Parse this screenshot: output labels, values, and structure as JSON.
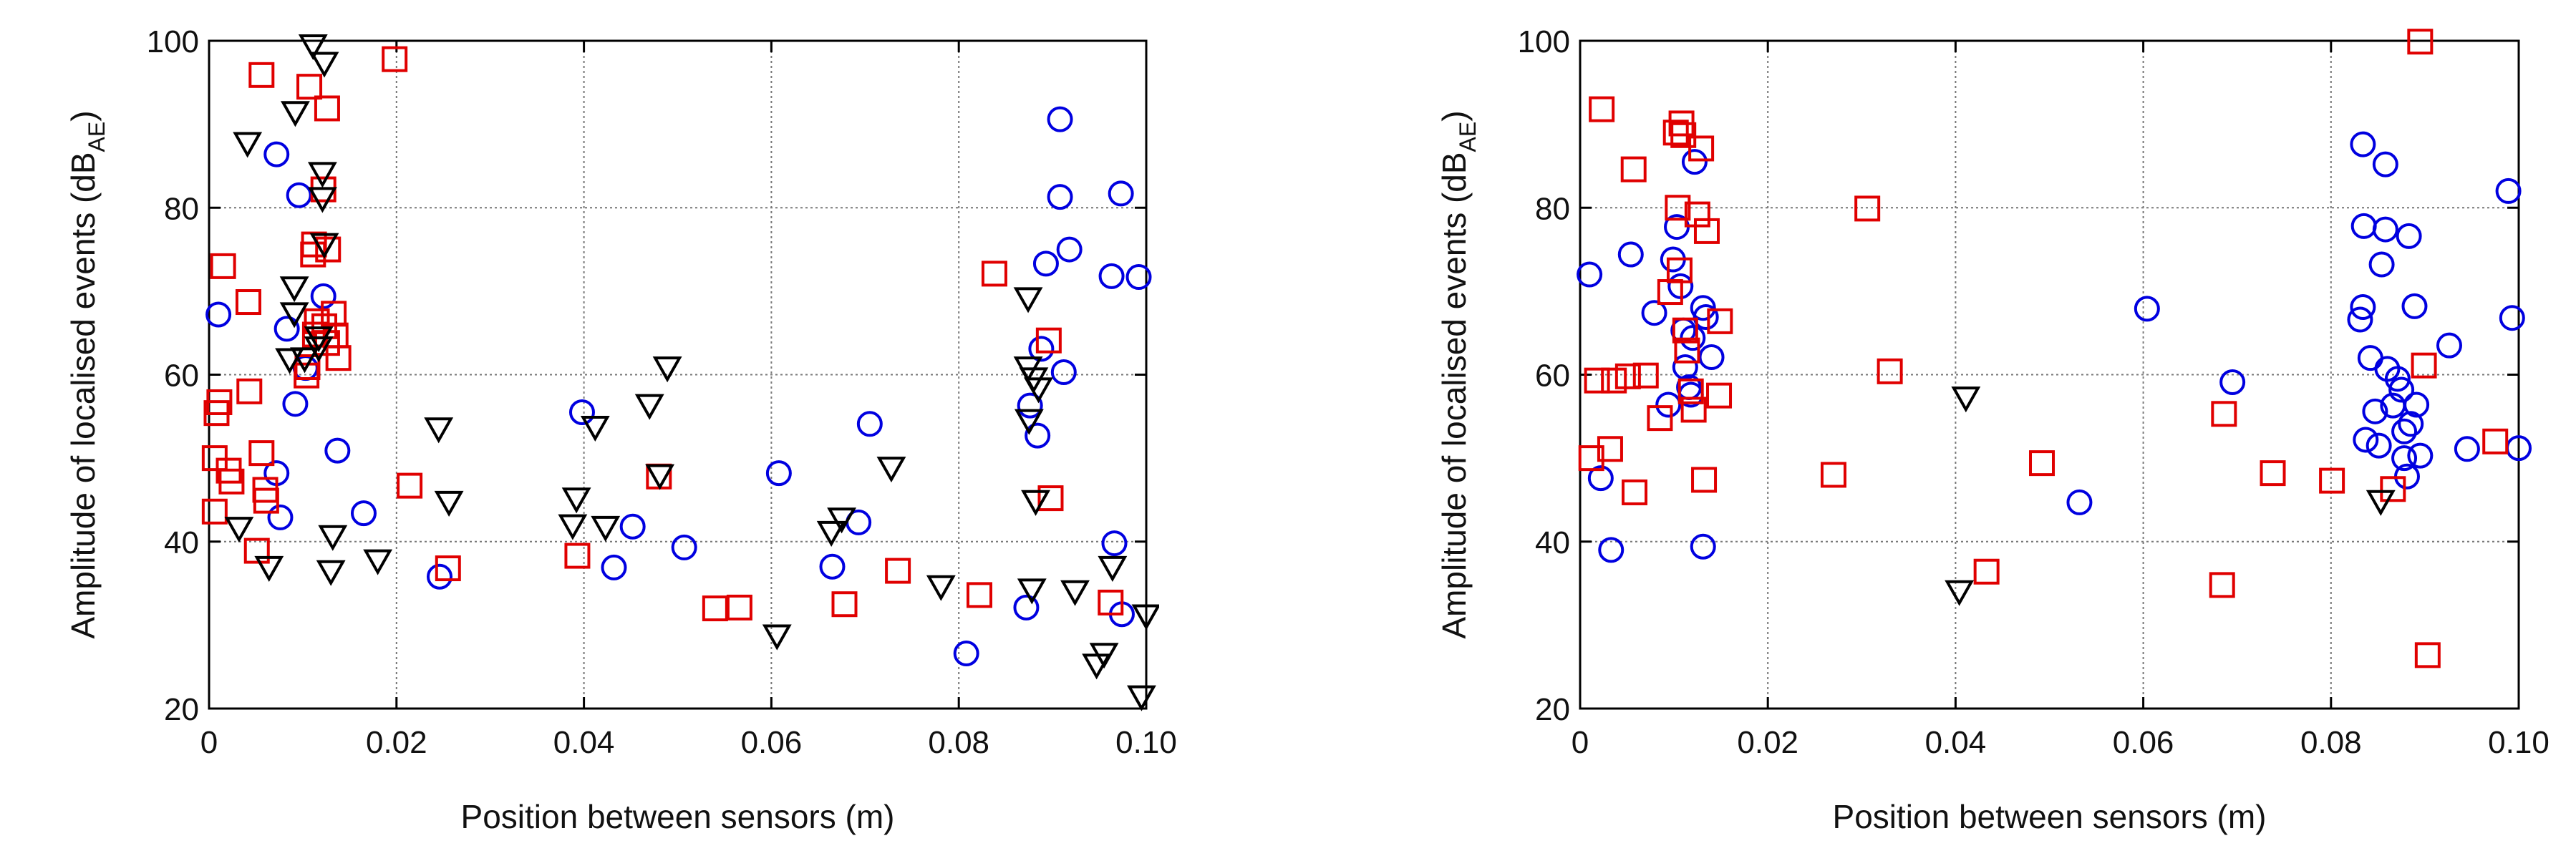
{
  "chart_data": [
    {
      "type": "scatter",
      "title": "",
      "xlabel": "Position between sensors (m)",
      "ylabel": "Amplitude of localised events (dB",
      "ylabel_sub": "AE",
      "ylabel_end": ")",
      "xlim": [
        0,
        0.1
      ],
      "ylim": [
        20,
        100
      ],
      "xticks": [
        0,
        0.02,
        0.04,
        0.06,
        0.08,
        0.1
      ],
      "xtick_labels": [
        "0",
        "0.02",
        "0.04",
        "0.06",
        "0.08",
        "0.10"
      ],
      "yticks": [
        20,
        40,
        60,
        80,
        100
      ],
      "ytick_labels": [
        "20",
        "40",
        "60",
        "80",
        "100"
      ],
      "grid": true,
      "series": [
        {
          "name": "circles",
          "marker": "circle",
          "color": "#0000e0",
          "points": [
            [
              0.001,
              67.2
            ],
            [
              0.0072,
              86.4
            ],
            [
              0.0096,
              81.5
            ],
            [
              0.0092,
              56.5
            ],
            [
              0.0083,
              65.5
            ],
            [
              0.0072,
              48.2
            ],
            [
              0.0076,
              42.9
            ],
            [
              0.0103,
              60.8
            ],
            [
              0.0122,
              69.4
            ],
            [
              0.0137,
              50.9
            ],
            [
              0.0165,
              43.4
            ],
            [
              0.0246,
              35.8
            ],
            [
              0.0398,
              55.5
            ],
            [
              0.0432,
              36.9
            ],
            [
              0.0452,
              41.8
            ],
            [
              0.0507,
              39.3
            ],
            [
              0.0608,
              48.2
            ],
            [
              0.0665,
              37.0
            ],
            [
              0.0693,
              42.3
            ],
            [
              0.0705,
              54.1
            ],
            [
              0.0808,
              26.6
            ],
            [
              0.0872,
              32.1
            ],
            [
              0.0884,
              52.7
            ],
            [
              0.0893,
              73.3
            ],
            [
              0.0918,
              75.0
            ],
            [
              0.0908,
              90.6
            ],
            [
              0.0908,
              81.3
            ],
            [
              0.0912,
              60.3
            ],
            [
              0.0888,
              63.1
            ],
            [
              0.0963,
              71.8
            ],
            [
              0.0992,
              71.7
            ],
            [
              0.0973,
              81.7
            ],
            [
              0.0966,
              39.8
            ],
            [
              0.0974,
              31.3
            ],
            [
              0.0876,
              56.3
            ]
          ]
        },
        {
          "name": "squares",
          "marker": "square",
          "color": "#e00000",
          "points": [
            [
              0.0006,
              43.6
            ],
            [
              0.0006,
              50.0
            ],
            [
              0.0008,
              55.4
            ],
            [
              0.0011,
              56.7
            ],
            [
              0.0021,
              48.5
            ],
            [
              0.0024,
              47.2
            ],
            [
              0.0015,
              73.0
            ],
            [
              0.0042,
              68.7
            ],
            [
              0.0043,
              58.0
            ],
            [
              0.0051,
              38.9
            ],
            [
              0.0056,
              50.6
            ],
            [
              0.006,
              46.2
            ],
            [
              0.0061,
              44.9
            ],
            [
              0.0056,
              95.9
            ],
            [
              0.0107,
              94.5
            ],
            [
              0.0126,
              91.9
            ],
            [
              0.0198,
              97.8
            ],
            [
              0.0104,
              59.9
            ],
            [
              0.0105,
              60.9
            ],
            [
              0.0113,
              64.8
            ],
            [
              0.0115,
              66.4
            ],
            [
              0.0111,
              74.4
            ],
            [
              0.0112,
              75.6
            ],
            [
              0.0122,
              82.2
            ],
            [
              0.0123,
              65.8
            ],
            [
              0.0126,
              63.8
            ],
            [
              0.0127,
              75.0
            ],
            [
              0.0133,
              67.3
            ],
            [
              0.0135,
              64.7
            ],
            [
              0.0138,
              62.0
            ],
            [
              0.0214,
              46.7
            ],
            [
              0.0255,
              36.8
            ],
            [
              0.0393,
              38.3
            ],
            [
              0.048,
              47.8
            ],
            [
              0.054,
              32.0
            ],
            [
              0.0566,
              32.1
            ],
            [
              0.0678,
              32.5
            ],
            [
              0.0735,
              36.5
            ],
            [
              0.0822,
              33.6
            ],
            [
              0.0838,
              72.1
            ],
            [
              0.0896,
              64.1
            ],
            [
              0.0898,
              45.2
            ],
            [
              0.0962,
              32.7
            ]
          ]
        },
        {
          "name": "triangles",
          "marker": "triangle-down",
          "color": "#000000",
          "points": [
            [
              0.0111,
              99.4
            ],
            [
              0.0123,
              97.3
            ],
            [
              0.0092,
              91.4
            ],
            [
              0.0041,
              87.7
            ],
            [
              0.0121,
              84.1
            ],
            [
              0.0121,
              81.1
            ],
            [
              0.0123,
              75.6
            ],
            [
              0.0091,
              70.4
            ],
            [
              0.0091,
              67.3
            ],
            [
              0.0086,
              61.8
            ],
            [
              0.0102,
              61.9
            ],
            [
              0.0117,
              64.4
            ],
            [
              0.0117,
              63.2
            ],
            [
              0.0032,
              41.6
            ],
            [
              0.0064,
              36.9
            ],
            [
              0.013,
              36.4
            ],
            [
              0.0132,
              40.6
            ],
            [
              0.018,
              37.7
            ],
            [
              0.0245,
              53.5
            ],
            [
              0.0256,
              44.7
            ],
            [
              0.0388,
              41.9
            ],
            [
              0.0392,
              45.1
            ],
            [
              0.0412,
              53.7
            ],
            [
              0.0423,
              41.7
            ],
            [
              0.047,
              56.3
            ],
            [
              0.0481,
              47.9
            ],
            [
              0.0489,
              60.8
            ],
            [
              0.0606,
              28.7
            ],
            [
              0.0664,
              41.1
            ],
            [
              0.0675,
              42.7
            ],
            [
              0.0728,
              48.8
            ],
            [
              0.0781,
              34.6
            ],
            [
              0.0874,
              69.1
            ],
            [
              0.0874,
              60.8
            ],
            [
              0.088,
              59.5
            ],
            [
              0.0885,
              58.3
            ],
            [
              0.0875,
              54.5
            ],
            [
              0.0878,
              34.2
            ],
            [
              0.0882,
              44.8
            ],
            [
              0.0924,
              34.0
            ],
            [
              0.0947,
              25.2
            ],
            [
              0.0955,
              26.5
            ],
            [
              0.0964,
              36.9
            ],
            [
              0.1,
              31.1
            ],
            [
              0.0995,
              21.4
            ]
          ]
        }
      ]
    },
    {
      "type": "scatter",
      "title": "",
      "xlabel": "Position between sensors (m)",
      "ylabel": "Amplitude of localised events (dB",
      "ylabel_sub": "AE",
      "ylabel_end": ")",
      "xlim": [
        0,
        0.1
      ],
      "ylim": [
        20,
        100
      ],
      "xticks": [
        0,
        0.02,
        0.04,
        0.06,
        0.08,
        0.1
      ],
      "xtick_labels": [
        "0",
        "0.02",
        "0.04",
        "0.06",
        "0.08",
        "0.10"
      ],
      "yticks": [
        20,
        40,
        60,
        80,
        100
      ],
      "ytick_labels": [
        "20",
        "40",
        "60",
        "80",
        "100"
      ],
      "grid": true,
      "series": [
        {
          "name": "circles",
          "marker": "circle",
          "color": "#0000e0",
          "points": [
            [
              0.001,
              72.0
            ],
            [
              0.0022,
              47.6
            ],
            [
              0.0033,
              39.0
            ],
            [
              0.0054,
              74.4
            ],
            [
              0.0079,
              67.4
            ],
            [
              0.0094,
              56.4
            ],
            [
              0.0099,
              73.8
            ],
            [
              0.0103,
              77.7
            ],
            [
              0.0107,
              70.6
            ],
            [
              0.011,
              65.3
            ],
            [
              0.0112,
              60.9
            ],
            [
              0.0116,
              58.5
            ],
            [
              0.0118,
              57.6
            ],
            [
              0.012,
              64.4
            ],
            [
              0.0122,
              85.5
            ],
            [
              0.0131,
              68.0
            ],
            [
              0.0131,
              39.4
            ],
            [
              0.0134,
              66.9
            ],
            [
              0.014,
              62.1
            ],
            [
              0.0604,
              67.9
            ],
            [
              0.0532,
              44.7
            ],
            [
              0.0695,
              59.1
            ],
            [
              0.0834,
              87.6
            ],
            [
              0.0835,
              77.8
            ],
            [
              0.0834,
              68.1
            ],
            [
              0.0831,
              66.6
            ],
            [
              0.0837,
              52.2
            ],
            [
              0.0842,
              62.0
            ],
            [
              0.0847,
              55.6
            ],
            [
              0.0851,
              51.5
            ],
            [
              0.0854,
              73.2
            ],
            [
              0.0858,
              77.4
            ],
            [
              0.0858,
              85.2
            ],
            [
              0.086,
              60.7
            ],
            [
              0.0866,
              56.3
            ],
            [
              0.0871,
              59.5
            ],
            [
              0.0875,
              58.2
            ],
            [
              0.0878,
              50.0
            ],
            [
              0.0878,
              53.2
            ],
            [
              0.0881,
              47.8
            ],
            [
              0.0883,
              76.6
            ],
            [
              0.0885,
              54.1
            ],
            [
              0.0889,
              68.2
            ],
            [
              0.0891,
              56.4
            ],
            [
              0.0895,
              50.3
            ],
            [
              0.0926,
              63.5
            ],
            [
              0.0945,
              51.1
            ],
            [
              0.0989,
              82.0
            ],
            [
              0.0993,
              66.8
            ],
            [
              0.1,
              51.2
            ]
          ]
        },
        {
          "name": "squares",
          "marker": "square",
          "color": "#e00000",
          "points": [
            [
              0.0012,
              50.0
            ],
            [
              0.0018,
              59.3
            ],
            [
              0.0023,
              91.8
            ],
            [
              0.0032,
              51.1
            ],
            [
              0.0036,
              59.3
            ],
            [
              0.0051,
              59.8
            ],
            [
              0.0058,
              45.9
            ],
            [
              0.0057,
              84.6
            ],
            [
              0.007,
              59.9
            ],
            [
              0.0085,
              54.8
            ],
            [
              0.0096,
              69.9
            ],
            [
              0.0102,
              89.0
            ],
            [
              0.0104,
              80.0
            ],
            [
              0.0106,
              72.5
            ],
            [
              0.0108,
              90.1
            ],
            [
              0.011,
              88.7
            ],
            [
              0.0112,
              65.3
            ],
            [
              0.0114,
              62.9
            ],
            [
              0.0118,
              58.0
            ],
            [
              0.0121,
              55.8
            ],
            [
              0.0125,
              79.2
            ],
            [
              0.0129,
              87.1
            ],
            [
              0.0132,
              47.4
            ],
            [
              0.0135,
              77.2
            ],
            [
              0.0148,
              57.5
            ],
            [
              0.0149,
              66.4
            ],
            [
              0.027,
              48.0
            ],
            [
              0.0306,
              79.9
            ],
            [
              0.033,
              60.4
            ],
            [
              0.0433,
              36.4
            ],
            [
              0.0492,
              49.4
            ],
            [
              0.0684,
              34.8
            ],
            [
              0.0686,
              55.3
            ],
            [
              0.0738,
              48.2
            ],
            [
              0.0801,
              47.3
            ],
            [
              0.0866,
              46.3
            ],
            [
              0.0903,
              26.4
            ],
            [
              0.0899,
              61.1
            ],
            [
              0.0895,
              99.9
            ],
            [
              0.0975,
              52.0
            ]
          ]
        },
        {
          "name": "triangles",
          "marker": "triangle-down",
          "color": "#000000",
          "points": [
            [
              0.0411,
              57.2
            ],
            [
              0.0404,
              34.0
            ],
            [
              0.0853,
              44.8
            ]
          ]
        }
      ]
    }
  ]
}
